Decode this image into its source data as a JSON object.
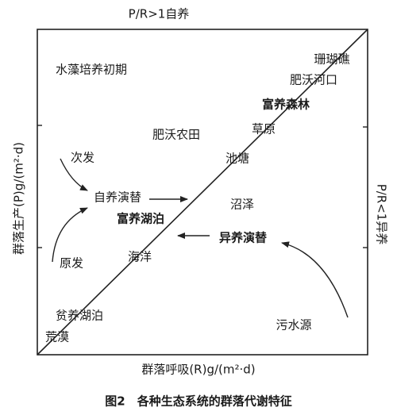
{
  "diagram": {
    "top_label": "P/R>1自养",
    "right_label": "P/R<1异养",
    "y_axis_label": "群落生产(P)g/(m²·d)",
    "x_axis_label": "群落呼吸(R)g/(m²·d)",
    "caption": "图2　各种生态系统的群落代谢特征",
    "labels": [
      "珊瑚礁",
      "肥沃河口",
      "富养森林",
      "草原",
      "池塘",
      "沼泽",
      "水藻培养初期",
      "肥沃农田",
      "次发",
      "自养演替",
      "富养湖泊",
      "异养演替",
      "海洋",
      "原发",
      "贫养湖泊",
      "荒漠",
      "污水源"
    ]
  }
}
